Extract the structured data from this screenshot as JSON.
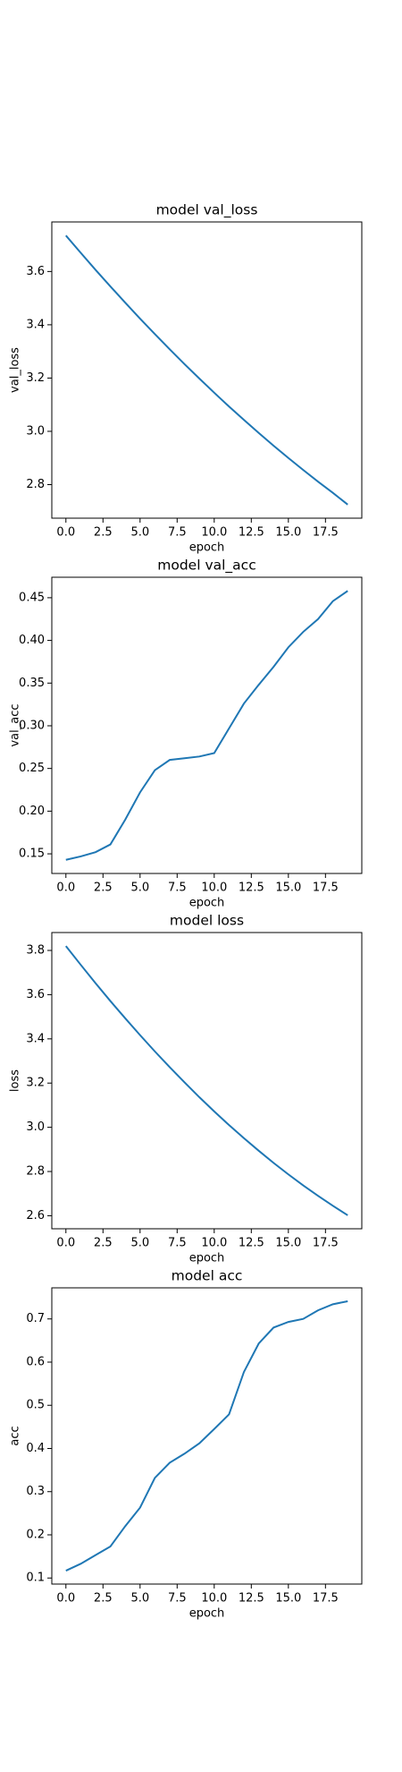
{
  "chart_data": [
    {
      "type": "line",
      "title": "model val_loss",
      "x_label": "epoch",
      "y_label": "val_loss",
      "x": [
        0,
        1,
        2,
        3,
        4,
        5,
        6,
        7,
        8,
        9,
        10,
        11,
        12,
        13,
        14,
        15,
        16,
        17,
        18,
        19
      ],
      "series": [
        {
          "name": "val_loss",
          "color": "#1f77b4",
          "values": [
            3.735,
            3.67,
            3.606,
            3.544,
            3.483,
            3.423,
            3.365,
            3.308,
            3.252,
            3.198,
            3.145,
            3.093,
            3.043,
            2.994,
            2.946,
            2.9,
            2.855,
            2.811,
            2.769,
            2.725
          ]
        }
      ],
      "xlim": [
        -0.95,
        19.95
      ],
      "xticks": [
        {
          "value": 0,
          "label": "0.0"
        },
        {
          "value": 2.5,
          "label": "2.5"
        },
        {
          "value": 5,
          "label": "5.0"
        },
        {
          "value": 7.5,
          "label": "7.5"
        },
        {
          "value": 10,
          "label": "10.0"
        },
        {
          "value": 12.5,
          "label": "12.5"
        },
        {
          "value": 15,
          "label": "15.0"
        },
        {
          "value": 17.5,
          "label": "17.5"
        }
      ],
      "ylim": [
        2.674,
        3.786
      ],
      "yticks": [
        2.8,
        {
          "value": 3,
          "label": "3.0"
        },
        3.2,
        3.4,
        3.6
      ]
    },
    {
      "type": "line",
      "title": "model val_acc",
      "x_label": "epoch",
      "y_label": "val_acc",
      "x": [
        0,
        1,
        2,
        3,
        4,
        5,
        6,
        7,
        8,
        9,
        10,
        11,
        12,
        13,
        14,
        15,
        16,
        17,
        18,
        19
      ],
      "series": [
        {
          "name": "val_acc",
          "color": "#1f77b4",
          "values": [
            0.143,
            0.147,
            0.152,
            0.161,
            0.19,
            0.222,
            0.248,
            0.26,
            0.262,
            0.264,
            0.268,
            0.297,
            0.326,
            0.348,
            0.369,
            0.392,
            0.41,
            0.425,
            0.446,
            0.458
          ]
        }
      ],
      "xlim": [
        -0.95,
        19.95
      ],
      "xticks": [
        {
          "value": 0,
          "label": "0.0"
        },
        {
          "value": 2.5,
          "label": "2.5"
        },
        {
          "value": 5,
          "label": "5.0"
        },
        {
          "value": 7.5,
          "label": "7.5"
        },
        {
          "value": 10,
          "label": "10.0"
        },
        {
          "value": 12.5,
          "label": "12.5"
        },
        {
          "value": 15,
          "label": "15.0"
        },
        {
          "value": 17.5,
          "label": "17.5"
        }
      ],
      "ylim": [
        0.127,
        0.474
      ],
      "yticks": [
        0.15,
        {
          "value": 0.2,
          "label": "0.20"
        },
        0.25,
        {
          "value": 0.3,
          "label": "0.30"
        },
        0.35,
        {
          "value": 0.4,
          "label": "0.40"
        },
        0.45
      ]
    },
    {
      "type": "line",
      "title": "model loss",
      "x_label": "epoch",
      "y_label": "loss",
      "x": [
        0,
        1,
        2,
        3,
        4,
        5,
        6,
        7,
        8,
        9,
        10,
        11,
        12,
        13,
        14,
        15,
        16,
        17,
        18,
        19
      ],
      "series": [
        {
          "name": "loss",
          "color": "#1f77b4",
          "values": [
            3.82,
            3.735,
            3.652,
            3.571,
            3.493,
            3.417,
            3.343,
            3.272,
            3.203,
            3.136,
            3.072,
            3.01,
            2.951,
            2.894,
            2.839,
            2.787,
            2.737,
            2.69,
            2.645,
            2.602
          ]
        }
      ],
      "xlim": [
        -0.95,
        19.95
      ],
      "xticks": [
        {
          "value": 0,
          "label": "0.0"
        },
        {
          "value": 2.5,
          "label": "2.5"
        },
        {
          "value": 5,
          "label": "5.0"
        },
        {
          "value": 7.5,
          "label": "7.5"
        },
        {
          "value": 10,
          "label": "10.0"
        },
        {
          "value": 12.5,
          "label": "12.5"
        },
        {
          "value": 15,
          "label": "15.0"
        },
        {
          "value": 17.5,
          "label": "17.5"
        }
      ],
      "ylim": [
        2.541,
        3.881
      ],
      "yticks": [
        2.6,
        2.8,
        {
          "value": 3,
          "label": "3.0"
        },
        3.2,
        3.4,
        3.6,
        3.8
      ]
    },
    {
      "type": "line",
      "title": "model acc",
      "x_label": "epoch",
      "y_label": "acc",
      "x": [
        0,
        1,
        2,
        3,
        4,
        5,
        6,
        7,
        8,
        9,
        10,
        11,
        12,
        13,
        14,
        15,
        16,
        17,
        18,
        19
      ],
      "series": [
        {
          "name": "acc",
          "color": "#1f77b4",
          "values": [
            0.117,
            0.133,
            0.153,
            0.173,
            0.22,
            0.263,
            0.332,
            0.367,
            0.388,
            0.412,
            0.445,
            0.479,
            0.577,
            0.643,
            0.68,
            0.693,
            0.7,
            0.72,
            0.734,
            0.741
          ]
        }
      ],
      "xlim": [
        -0.95,
        19.95
      ],
      "xticks": [
        {
          "value": 0,
          "label": "0.0"
        },
        {
          "value": 2.5,
          "label": "2.5"
        },
        {
          "value": 5,
          "label": "5.0"
        },
        {
          "value": 7.5,
          "label": "7.5"
        },
        {
          "value": 10,
          "label": "10.0"
        },
        {
          "value": 12.5,
          "label": "12.5"
        },
        {
          "value": 15,
          "label": "15.0"
        },
        {
          "value": 17.5,
          "label": "17.5"
        }
      ],
      "ylim": [
        0.086,
        0.772
      ],
      "yticks": [
        0.1,
        0.2,
        0.3,
        0.4,
        0.5,
        0.6,
        0.7
      ]
    }
  ]
}
